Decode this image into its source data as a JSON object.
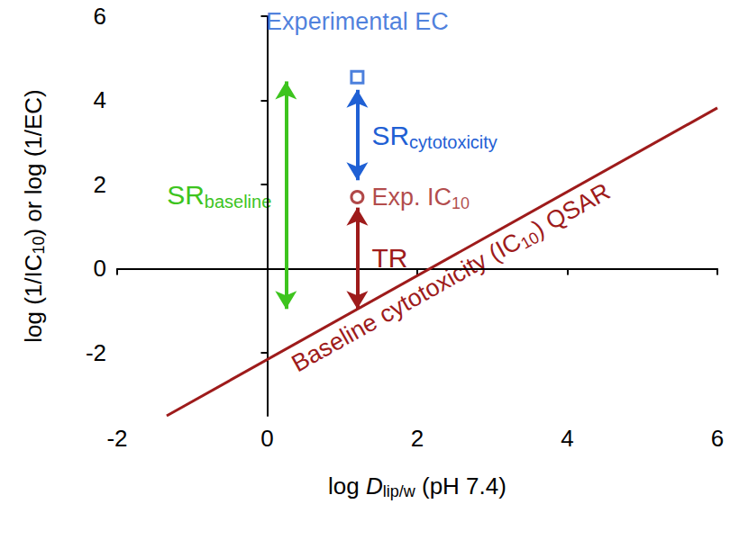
{
  "chart_data": {
    "type": "scatter",
    "x_label": [
      {
        "text": "log "
      },
      {
        "text": "D",
        "style": "italic"
      },
      {
        "text": "lip/w",
        "style": "sub"
      },
      {
        "text": " (pH 7.4)"
      }
    ],
    "y_label": [
      {
        "text": "log (1/IC"
      },
      {
        "text": "10",
        "style": "sub"
      },
      {
        "text": ") or log (1/EC)"
      }
    ],
    "xlim": [
      -2,
      6
    ],
    "xticks": [
      -2,
      0,
      2,
      4,
      6
    ],
    "ylim": [
      -3.5,
      6
    ],
    "yticks": [
      -2,
      0,
      2,
      4,
      6
    ],
    "grid": false,
    "series": [
      {
        "type": "line",
        "color": "#9e1b1b",
        "x": [
          -1.34,
          6
        ],
        "values": [
          -3.5,
          3.82
        ],
        "label": [
          {
            "text": "Baseline cytotoxicity (IC"
          },
          {
            "text": "10",
            "style": "sub"
          },
          {
            "text": ") QSAR"
          }
        ]
      },
      {
        "type": "scatter",
        "marker": "square",
        "color": "#1f60d4",
        "x": [
          1.2
        ],
        "values": [
          4.55
        ],
        "label": [
          {
            "text": "Experimental EC"
          }
        ]
      },
      {
        "type": "scatter",
        "marker": "circle",
        "color": "#9e1b1b",
        "x": [
          1.2
        ],
        "values": [
          1.7
        ],
        "label": [
          {
            "text": "Exp. IC"
          },
          {
            "text": "10",
            "style": "sub"
          }
        ]
      }
    ],
    "arrows": [
      {
        "x": 1.2,
        "from": 4.25,
        "to": 2.1,
        "color": "#1f60d4",
        "label": [
          {
            "text": "SR"
          },
          {
            "text": "cytotoxicity",
            "style": "sub"
          }
        ]
      },
      {
        "x": 1.2,
        "from": 1.45,
        "to": -0.96,
        "color": "#9e1b1b",
        "label": [
          {
            "text": "TR"
          }
        ]
      },
      {
        "x": 0.25,
        "from": 4.45,
        "to": -0.96,
        "color": "#3dc41e",
        "label": [
          {
            "text": "SR"
          },
          {
            "text": "baseline",
            "style": "sub"
          }
        ]
      }
    ]
  }
}
